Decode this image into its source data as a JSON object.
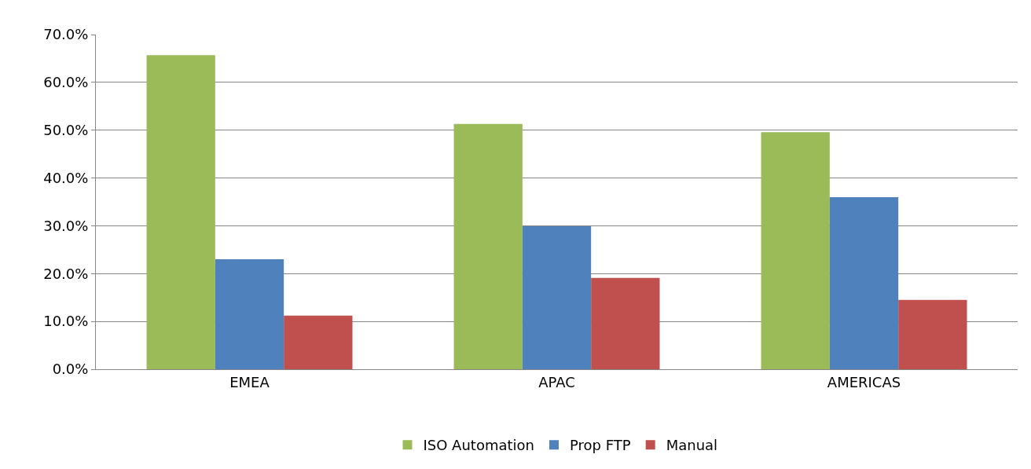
{
  "chart_data": {
    "type": "bar",
    "categories": [
      "EMEA",
      "APAC",
      "AMERICAS"
    ],
    "series": [
      {
        "name": "ISO Automation",
        "color": "#9bbb59",
        "values": [
          65.7,
          51.3,
          49.6
        ]
      },
      {
        "name": "Prop FTP",
        "color": "#4f81bd",
        "values": [
          23.0,
          29.9,
          36.0
        ]
      },
      {
        "name": "Manual",
        "color": "#c0504d",
        "values": [
          11.2,
          19.1,
          14.5
        ]
      }
    ],
    "ylim": [
      0,
      70
    ],
    "yticks": [
      {
        "value": 0,
        "label": "0.0%"
      },
      {
        "value": 10,
        "label": "10.0%"
      },
      {
        "value": 20,
        "label": "20.0%"
      },
      {
        "value": 30,
        "label": "30.0%"
      },
      {
        "value": 40,
        "label": "40.0%"
      },
      {
        "value": 50,
        "label": "50.0%"
      },
      {
        "value": 60,
        "label": "60.0%"
      },
      {
        "value": 70,
        "label": "70.0%"
      }
    ],
    "grid": "y",
    "legend": "bottom"
  }
}
